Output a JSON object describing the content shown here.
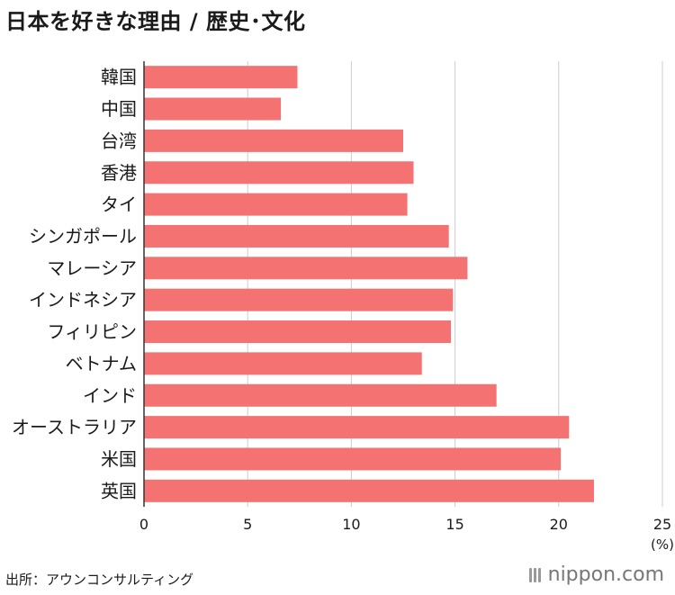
{
  "title": "日本を好きな理由 / 歴史･文化",
  "source": "出所：アウンコンサルティング",
  "logo_text": "nippon.com",
  "chart_data": {
    "type": "bar",
    "orientation": "horizontal",
    "categories": [
      "韓国",
      "中国",
      "台湾",
      "香港",
      "タイ",
      "シンガポール",
      "マレーシア",
      "インドネシア",
      "フィリピン",
      "ベトナム",
      "インド",
      "オーストラリア",
      "米国",
      "英国"
    ],
    "values": [
      7.4,
      6.6,
      12.5,
      13.0,
      12.7,
      14.7,
      15.6,
      14.9,
      14.8,
      13.4,
      17.0,
      20.5,
      20.1,
      21.7
    ],
    "xlim": [
      0,
      25
    ],
    "xticks": [
      "0",
      "5",
      "10",
      "15",
      "20",
      "25"
    ],
    "xunit": "(%)",
    "bar_color": "#f47272",
    "grid": true
  }
}
